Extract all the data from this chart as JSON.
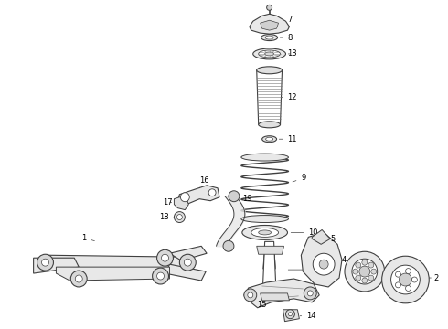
{
  "bg_color": "#ffffff",
  "line_color": "#404040",
  "label_color": "#000000",
  "fig_width": 4.9,
  "fig_height": 3.6,
  "dpi": 100,
  "label_fs": 6.0
}
